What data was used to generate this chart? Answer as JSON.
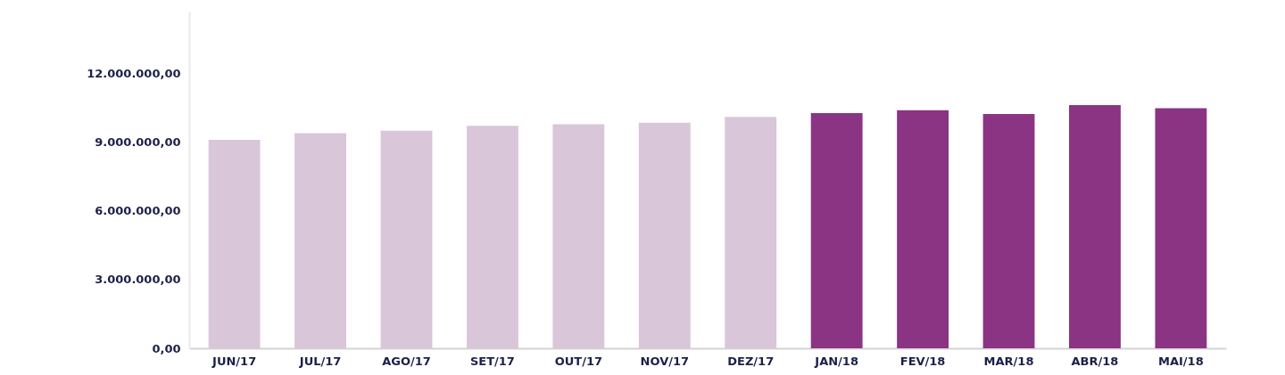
{
  "chart_data": {
    "type": "bar",
    "categories": [
      "JUN/17",
      "JUL/17",
      "AGO/17",
      "SET/17",
      "OUT/17",
      "NOV/17",
      "DEZ/17",
      "JAN/18",
      "FEV/18",
      "MAR/18",
      "ABR/18",
      "MAI/18"
    ],
    "values": [
      9100000,
      9390000,
      9500000,
      9710000,
      9780000,
      9850000,
      10100000,
      10270000,
      10390000,
      10230000,
      10620000,
      10480000
    ],
    "colors": [
      "#d9c6d8",
      "#d9c6d8",
      "#d9c6d8",
      "#d9c6d8",
      "#d9c6d8",
      "#d9c6d8",
      "#d9c6d8",
      "#8b3483",
      "#8b3483",
      "#8b3483",
      "#8b3483",
      "#8b3483"
    ],
    "ylim": [
      0,
      14700000
    ],
    "yticks": [
      {
        "value": 0,
        "label": "0,00"
      },
      {
        "value": 3000000,
        "label": "3.000.000,00"
      },
      {
        "value": 6000000,
        "label": "6.000.000,00"
      },
      {
        "value": 9000000,
        "label": "9.000.000,00"
      },
      {
        "value": 12000000,
        "label": "12.000.000,00"
      }
    ],
    "grid": false
  }
}
